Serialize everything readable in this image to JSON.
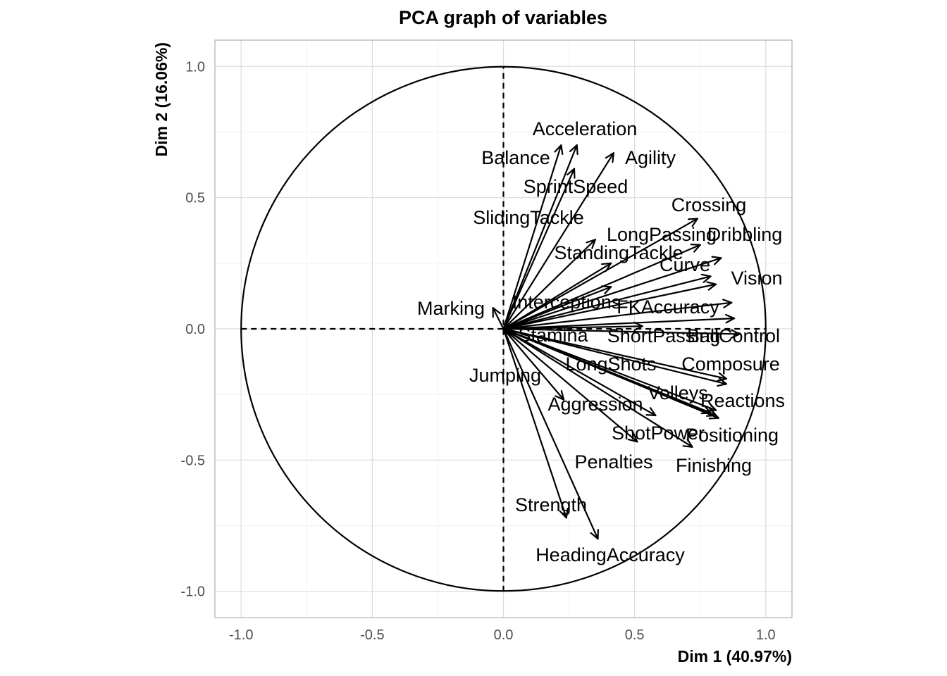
{
  "chart_data": {
    "type": "scatter",
    "subtype": "pca-correlation-circle",
    "title": "PCA graph of variables",
    "xlabel": "Dim 1 (40.97%)",
    "ylabel": "Dim 2 (16.06%)",
    "xlim": [
      -1.1,
      1.1
    ],
    "ylim": [
      -1.1,
      1.1
    ],
    "xticks": [
      "-1.0",
      "-0.5",
      "0.0",
      "0.5",
      "1.0"
    ],
    "yticks": [
      "-1.0",
      "-0.5",
      "0.0",
      "0.5",
      "1.0"
    ],
    "grid": true,
    "unit_circle": true,
    "reference_lines": "dashed at x=0 and y=0",
    "variables": [
      {
        "name": "Acceleration",
        "x": 0.28,
        "y": 0.7
      },
      {
        "name": "Balance",
        "x": 0.22,
        "y": 0.7
      },
      {
        "name": "Agility",
        "x": 0.42,
        "y": 0.67
      },
      {
        "name": "SprintSpeed",
        "x": 0.27,
        "y": 0.61
      },
      {
        "name": "SlidingTackle",
        "x": 0.35,
        "y": 0.34
      },
      {
        "name": "Crossing",
        "x": 0.74,
        "y": 0.42
      },
      {
        "name": "LongPassing",
        "x": 0.75,
        "y": 0.32
      },
      {
        "name": "Dribbling",
        "x": 0.83,
        "y": 0.27
      },
      {
        "name": "StandingTackle",
        "x": 0.41,
        "y": 0.25
      },
      {
        "name": "Curve",
        "x": 0.79,
        "y": 0.2
      },
      {
        "name": "Vision",
        "x": 0.81,
        "y": 0.17
      },
      {
        "name": "Marking",
        "x": -0.04,
        "y": 0.08
      },
      {
        "name": "Interceptions",
        "x": 0.41,
        "y": 0.16
      },
      {
        "name": "FKAccuracy",
        "x": 0.87,
        "y": 0.1
      },
      {
        "name": "Stamina",
        "x": 0.53,
        "y": 0.01
      },
      {
        "name": "ShortPassing",
        "x": 0.88,
        "y": 0.04
      },
      {
        "name": "BallControl",
        "x": 0.9,
        "y": -0.02
      },
      {
        "name": "LongShots",
        "x": 0.85,
        "y": -0.19
      },
      {
        "name": "Composure",
        "x": 0.85,
        "y": -0.21
      },
      {
        "name": "Jumping",
        "x": 0.23,
        "y": -0.27
      },
      {
        "name": "Aggression",
        "x": 0.58,
        "y": -0.33
      },
      {
        "name": "Volleys",
        "x": 0.79,
        "y": -0.32
      },
      {
        "name": "Reactions",
        "x": 0.81,
        "y": -0.33
      },
      {
        "name": "Positioning",
        "x": 0.82,
        "y": -0.34
      },
      {
        "name": "ShotPower",
        "x": 0.51,
        "y": -0.43
      },
      {
        "name": "Finishing",
        "x": 0.72,
        "y": -0.45
      },
      {
        "name": "Penalties",
        "x": 0.81,
        "y": -0.31
      },
      {
        "name": "Strength",
        "x": 0.24,
        "y": -0.72
      },
      {
        "name": "HeadingAccuracy",
        "x": 0.36,
        "y": -0.8
      }
    ]
  }
}
